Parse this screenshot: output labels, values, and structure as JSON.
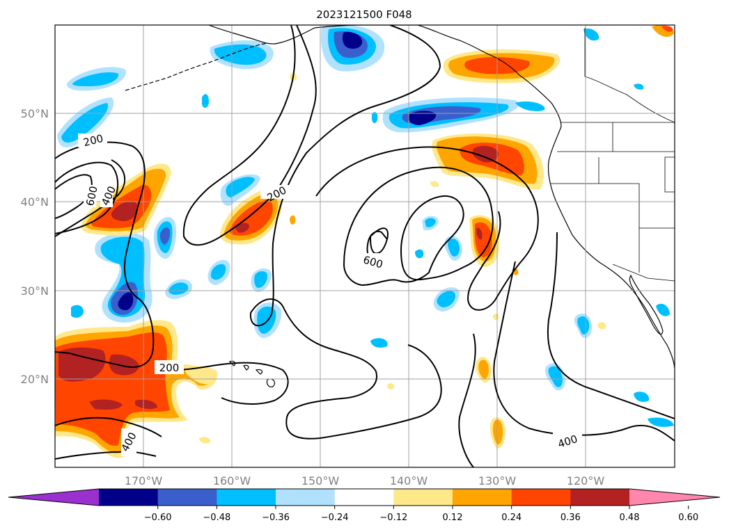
{
  "title": "2023121500 F048",
  "lon_labels": [
    "170°W",
    "160°W",
    "150°W",
    "140°W",
    "130°W",
    "120°W"
  ],
  "lat_labels": [
    "50°N",
    "40°N",
    "30°N",
    "20°N"
  ],
  "contour_labels": [
    "200",
    "600",
    "400",
    "200",
    "600",
    "200",
    "400",
    "400"
  ],
  "colorbar": {
    "ticks": [
      "−0.60",
      "−0.48",
      "−0.36",
      "−0.24",
      "−0.12",
      "0.12",
      "0.24",
      "0.36",
      "0.48",
      "0.60"
    ],
    "colors": [
      "#9b30d0",
      "#00008b",
      "#3a5fcd",
      "#00bfff",
      "#b0e2ff",
      "#ffffff",
      "#ffe88a",
      "#ffa500",
      "#ff4500",
      "#b22222",
      "#ff86ad"
    ]
  },
  "colors": {
    "cool_light": "#b0e2ff",
    "cool_mid": "#00bfff",
    "cool_strong": "#3a5fcd",
    "cool_max": "#00008b",
    "warm_light": "#ffe88a",
    "warm_mid": "#ffa500",
    "warm_strong": "#ff4500",
    "warm_max": "#b22222"
  }
}
